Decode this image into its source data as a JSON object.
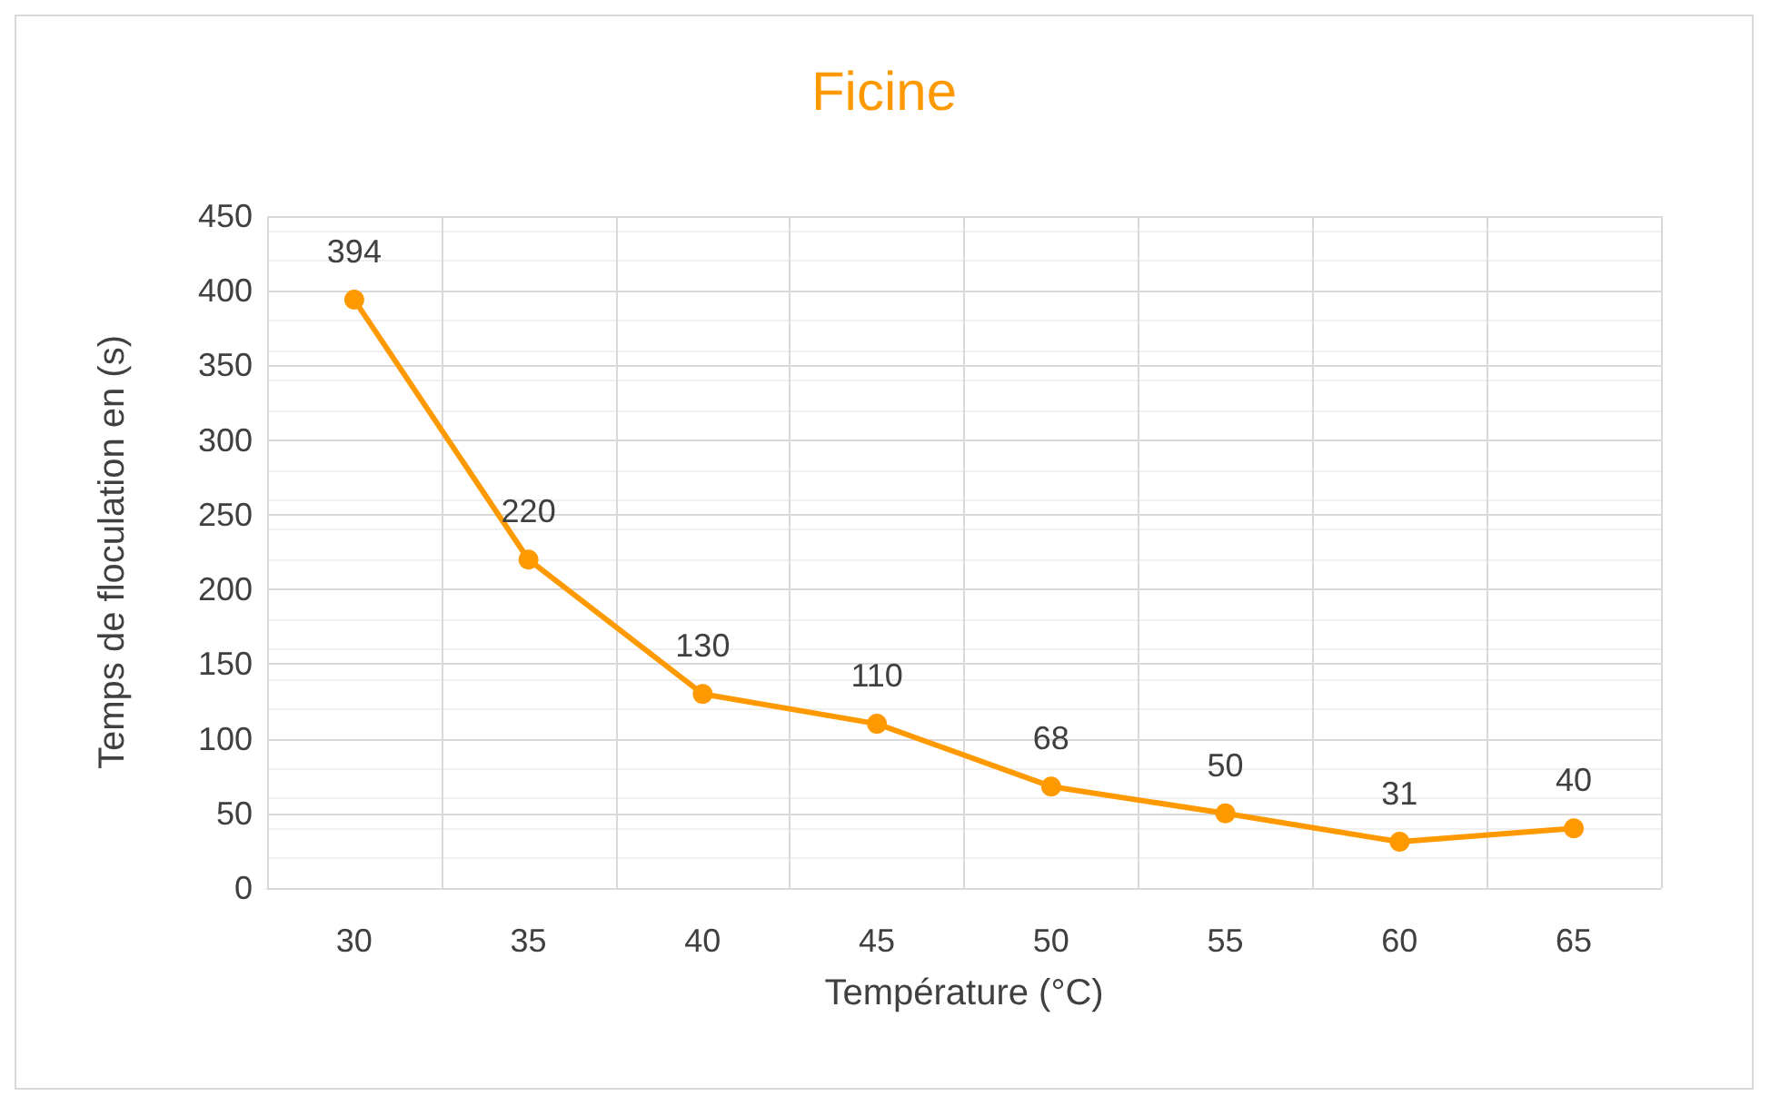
{
  "chart_data": {
    "type": "line",
    "title": "Ficine",
    "xlabel": "Température (°C)",
    "ylabel": "Temps de floculation en (s)",
    "categories": [
      "30",
      "35",
      "40",
      "45",
      "50",
      "55",
      "60",
      "65"
    ],
    "series": [
      {
        "color": "#ff9900",
        "values": [
          394,
          220,
          130,
          110,
          68,
          50,
          31,
          40
        ]
      }
    ],
    "ylim": [
      0,
      450
    ],
    "yticks": [
      0,
      50,
      100,
      150,
      200,
      250,
      300,
      350,
      400,
      450
    ],
    "grid": true,
    "data_labels": true,
    "marker": "circle",
    "line_style": "solid"
  }
}
